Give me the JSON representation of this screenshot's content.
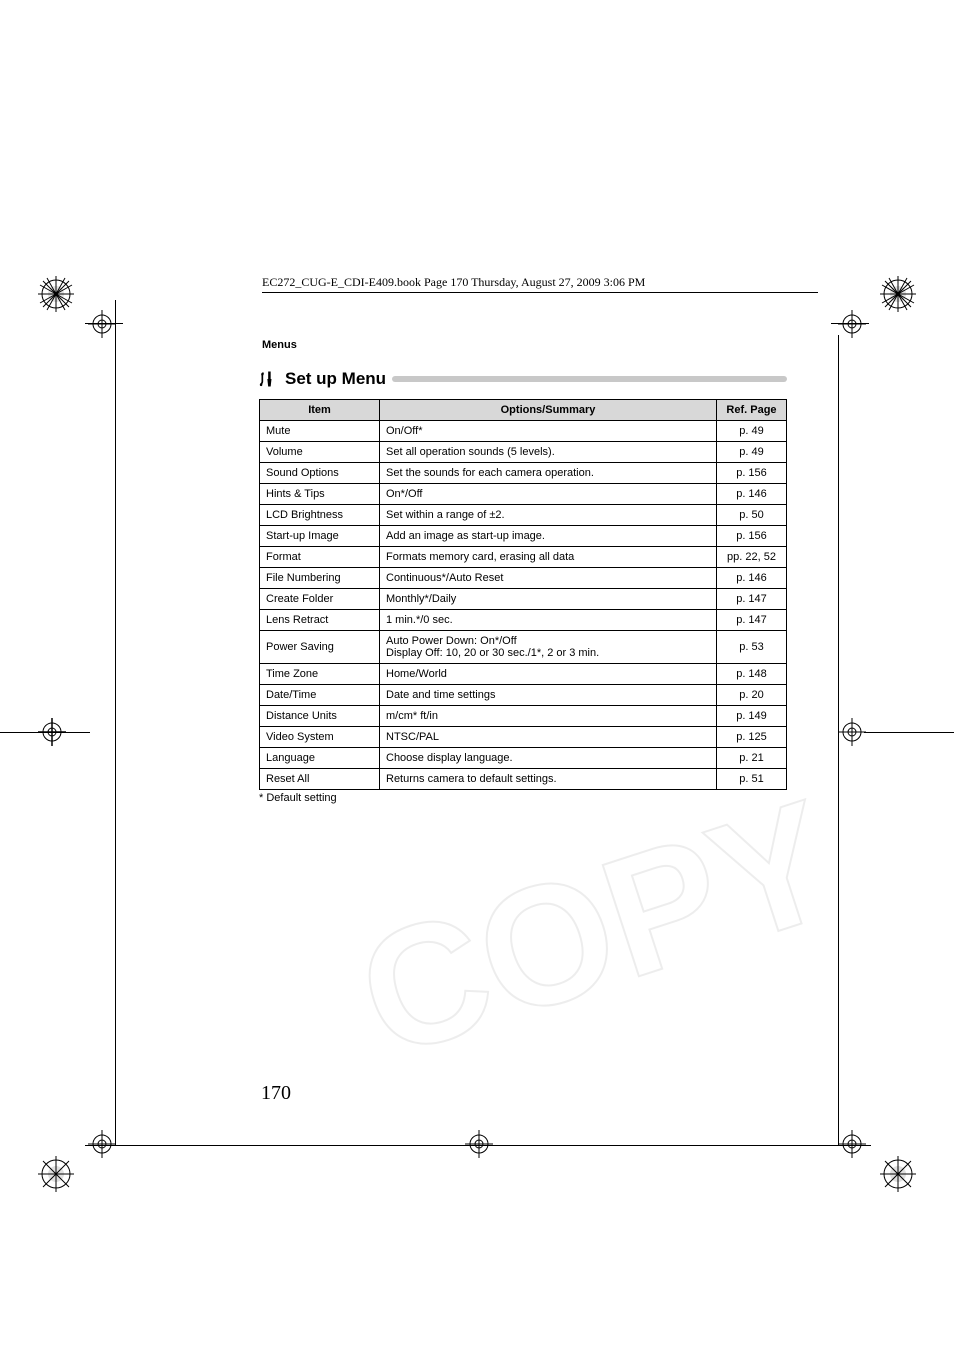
{
  "bookline": "EC272_CUG-E_CDI-E409.book  Page 170  Thursday, August 27, 2009  3:06 PM",
  "section_label": "Menus",
  "setup_title": "Set up Menu",
  "headers": {
    "item": "Item",
    "options": "Options/Summary",
    "ref": "Ref. Page"
  },
  "rows": [
    {
      "item": "Mute",
      "options": "On/Off*",
      "ref": "p. 49"
    },
    {
      "item": "Volume",
      "options": "Set all operation sounds (5 levels).",
      "ref": "p. 49"
    },
    {
      "item": "Sound Options",
      "options": "Set the sounds for each camera operation.",
      "ref": "p. 156"
    },
    {
      "item": "Hints & Tips",
      "options": "On*/Off",
      "ref": "p. 146"
    },
    {
      "item": "LCD Brightness",
      "options": "Set within a range of ±2.",
      "ref": "p. 50"
    },
    {
      "item": "Start-up Image",
      "options": "Add an image as start-up image.",
      "ref": "p. 156"
    },
    {
      "item": "Format",
      "options": "Formats memory card, erasing all data",
      "ref": "pp. 22, 52"
    },
    {
      "item": "File Numbering",
      "options": "Continuous*/Auto Reset",
      "ref": "p. 146"
    },
    {
      "item": "Create Folder",
      "options": "Monthly*/Daily",
      "ref": "p. 147"
    },
    {
      "item": "Lens Retract",
      "options": "1 min.*/0 sec.",
      "ref": "p. 147"
    },
    {
      "item": "Power Saving",
      "options": "Auto Power Down: On*/Off\nDisplay Off: 10, 20 or 30 sec./1*, 2 or 3 min.",
      "ref": "p. 53"
    },
    {
      "item": "Time Zone",
      "options": "Home/World",
      "ref": "p. 148"
    },
    {
      "item": "Date/Time",
      "options": "Date and time settings",
      "ref": "p. 20"
    },
    {
      "item": "Distance Units",
      "options": "m/cm* ft/in",
      "ref": "p. 149"
    },
    {
      "item": "Video System",
      "options": "NTSC/PAL",
      "ref": "p. 125"
    },
    {
      "item": "Language",
      "options": "Choose display language.",
      "ref": "p. 21"
    },
    {
      "item": "Reset All",
      "options": "Returns camera to default settings.",
      "ref": "p. 51"
    }
  ],
  "footnote": "* Default setting",
  "page_number": "170",
  "colors": {
    "header_bg": "#d8d8d8",
    "title_bar": "#c8c8c8",
    "border": "#000000"
  }
}
